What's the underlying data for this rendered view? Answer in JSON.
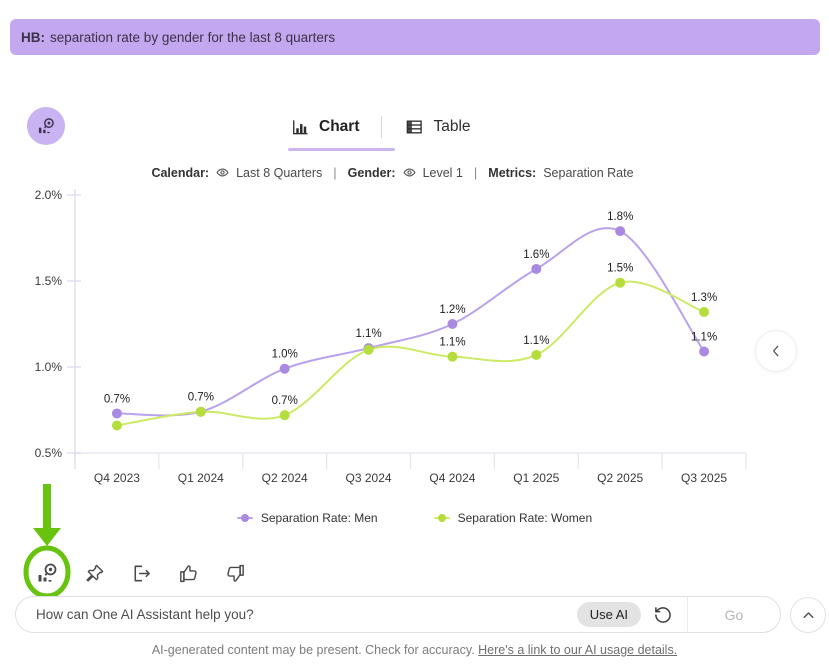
{
  "banner": {
    "prefix": "HB:",
    "text": "separation rate by gender for the last 8 quarters"
  },
  "tabs": {
    "chart": "Chart",
    "table": "Table"
  },
  "filters": {
    "calendar_label": "Calendar:",
    "calendar_value": "Last 8 Quarters",
    "gender_label": "Gender:",
    "gender_value": "Level 1",
    "metrics_label": "Metrics:",
    "metrics_value": "Separation Rate",
    "separator": "|"
  },
  "chart_data": {
    "type": "line",
    "title": "",
    "xlabel": "",
    "ylabel": "",
    "categories": [
      "Q4 2023",
      "Q1 2024",
      "Q2 2024",
      "Q3 2024",
      "Q4 2024",
      "Q1 2025",
      "Q2 2025",
      "Q3 2025"
    ],
    "series": [
      {
        "name": "Separation Rate: Men",
        "marker_color": "#a98ae3",
        "line_color": "#b9a2ec",
        "values": [
          0.7,
          0.7,
          1.0,
          1.1,
          1.2,
          1.6,
          1.8,
          1.1
        ],
        "plot_values": [
          0.73,
          0.74,
          0.99,
          1.11,
          1.25,
          1.57,
          1.79,
          1.09
        ],
        "labels": [
          "0.7%",
          "0.7%",
          "1.0%",
          "1.1%",
          "1.2%",
          "1.6%",
          "1.8%",
          "1.1%"
        ]
      },
      {
        "name": "Separation Rate: Women",
        "marker_color": "#b5de3d",
        "line_color": "#cdea67",
        "values": [
          0.7,
          0.7,
          0.7,
          1.1,
          1.1,
          1.1,
          1.5,
          1.3
        ],
        "plot_values": [
          0.66,
          0.74,
          0.72,
          1.1,
          1.06,
          1.07,
          1.49,
          1.32
        ],
        "labels": [
          null,
          null,
          "0.7%",
          null,
          "1.1%",
          "1.1%",
          "1.5%",
          "1.3%"
        ]
      }
    ],
    "ylim": [
      0.5,
      2.0
    ],
    "yticks": [
      {
        "value": 0.5,
        "label": "0.5%"
      },
      {
        "value": 1.0,
        "label": "1.0%"
      },
      {
        "value": 1.5,
        "label": "1.5%"
      },
      {
        "value": 2.0,
        "label": "2.0%"
      }
    ],
    "grid": false,
    "legend_position": "bottom"
  },
  "toolbar": {
    "icons": [
      "insights",
      "pin",
      "export",
      "thumbs-up",
      "thumbs-down"
    ]
  },
  "annotation": {
    "shape": "arrow-and-circle",
    "target": "insights-icon",
    "color": "#68c30e"
  },
  "assistant": {
    "placeholder": "How can One AI Assistant help you?",
    "use_ai": "Use AI",
    "go": "Go"
  },
  "footer": {
    "text": "AI-generated content may be present. Check for accuracy.",
    "link_text": "Here's a link to our AI usage details."
  },
  "colors": {
    "banner_bg": "#c3a7ef",
    "tab_underline": "#cbb7f0",
    "series_men": "#a98ae3",
    "series_women": "#b5de3d",
    "annotation_green": "#68c30e"
  }
}
